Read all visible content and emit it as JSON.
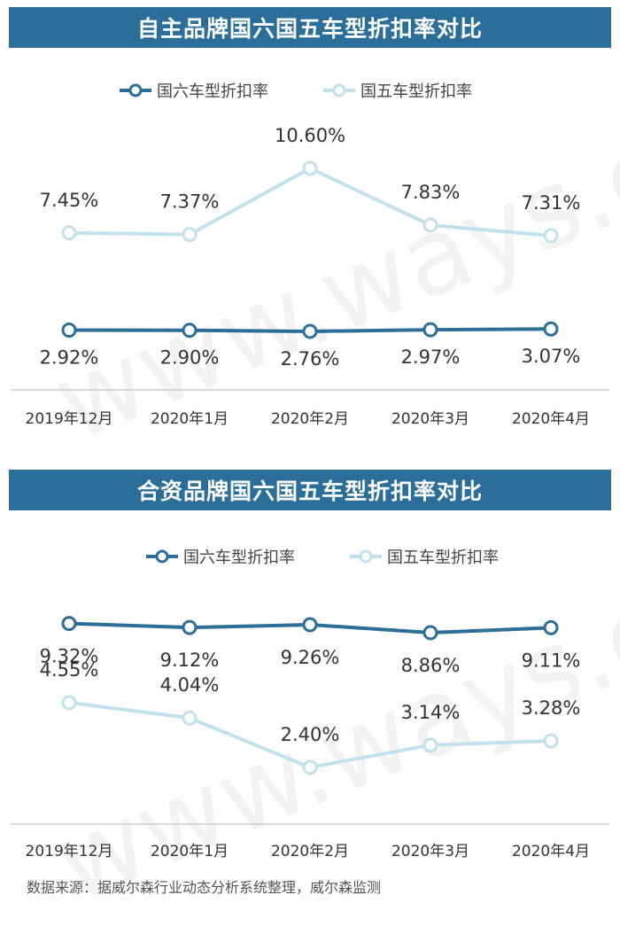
{
  "colors": {
    "banner": "#2a6e99",
    "guoliu": "#2b6f98",
    "guowu": "#c2e1ec",
    "axis": "#cccccc",
    "text": "#333333"
  },
  "watermark": "www.ways.cn",
  "charts": [
    {
      "banner_title": "自主品牌国六国五车型折扣率对比",
      "legend": [
        "国六车型折扣率",
        "国五车型折扣率"
      ]
    },
    {
      "banner_title": "合资品牌国六国五车型折扣率对比",
      "legend": [
        "国六车型折扣率",
        "国五车型折扣率"
      ]
    }
  ],
  "chart_data": [
    {
      "type": "line",
      "title": "自主品牌国六国五车型折扣率对比",
      "categories": [
        "2019年12月",
        "2020年1月",
        "2020年2月",
        "2020年3月",
        "2020年4月"
      ],
      "series": [
        {
          "name": "国六车型折扣率",
          "values": [
            2.92,
            2.9,
            2.76,
            2.97,
            3.07
          ],
          "labels": [
            "2.92%",
            "2.90%",
            "2.76%",
            "2.97%",
            "3.07%"
          ]
        },
        {
          "name": "国五车型折扣率",
          "values": [
            7.45,
            7.37,
            10.6,
            7.83,
            7.31
          ],
          "labels": [
            "7.45%",
            "7.37%",
            "10.60%",
            "7.83%",
            "7.31%"
          ]
        }
      ],
      "legend_position": "top-center",
      "grid": false
    },
    {
      "type": "line",
      "title": "合资品牌国六国五车型折扣率对比",
      "categories": [
        "2019年12月",
        "2020年1月",
        "2020年2月",
        "2020年3月",
        "2020年4月"
      ],
      "series": [
        {
          "name": "国六车型折扣率",
          "values": [
            9.32,
            9.12,
            9.26,
            8.86,
            9.11
          ],
          "labels": [
            "9.32%",
            "9.12%",
            "9.26%",
            "8.86%",
            "9.11%"
          ]
        },
        {
          "name": "国五车型折扣率",
          "values": [
            4.55,
            4.04,
            2.4,
            3.14,
            3.28
          ],
          "labels": [
            "4.55%",
            "4.04%",
            "2.40%",
            "3.14%",
            "3.28%"
          ]
        }
      ],
      "legend_position": "top-center",
      "grid": false
    }
  ],
  "source_text": "数据来源：据威尔森行业动态分析系统整理，威尔森监测"
}
